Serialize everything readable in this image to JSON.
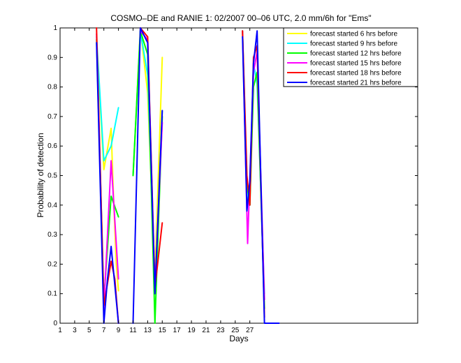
{
  "chart_data": {
    "type": "line",
    "title": "COSMO–DE and RANIE 1: 02/2007 00–06 UTC, 2.0 mm/6h for \"Ems\"",
    "xlabel": "Days",
    "ylabel": "Probability of detection",
    "xlim": [
      1,
      50
    ],
    "ylim": [
      0,
      1
    ],
    "xticks": [
      1,
      3,
      5,
      7,
      9,
      11,
      13,
      15,
      17,
      19,
      21,
      23,
      25,
      27
    ],
    "xtick_labels": [
      "1",
      "3",
      "5",
      "7",
      "9",
      "11",
      "13",
      "15",
      "17",
      "19",
      "21",
      "23",
      "25",
      "27"
    ],
    "yticks": [
      0,
      0.1,
      0.2,
      0.3,
      0.4,
      0.5,
      0.6,
      0.7,
      0.8,
      0.9,
      1
    ],
    "ytick_labels": [
      "0",
      "0.1",
      "0.2",
      "0.3",
      "0.4",
      "0.5",
      "0.6",
      "0.7",
      "0.8",
      "0.9",
      "1"
    ],
    "grid": false,
    "legend_position": "top-right",
    "series": [
      {
        "name": "forecast started 6 hrs before",
        "color": "#ffff00",
        "points": [
          [
            6,
            0.96
          ],
          [
            7,
            0.52
          ],
          [
            8,
            0.66
          ],
          [
            8.3,
            0.44
          ],
          [
            8.7,
            0.2
          ],
          [
            9,
            0.11
          ],
          null,
          [
            11,
            0.5
          ],
          [
            12,
            1
          ],
          [
            13,
            0.78
          ],
          [
            14,
            0.15
          ],
          [
            15,
            0.9
          ]
        ]
      },
      {
        "name": "forecast started 9 hrs before",
        "color": "#00ffff",
        "points": [
          [
            6,
            0.97
          ],
          [
            7,
            0.55
          ],
          [
            8,
            0.6
          ],
          [
            9,
            0.73
          ],
          null,
          [
            11,
            0.5
          ],
          [
            12,
            0.99
          ],
          [
            13,
            0.84
          ],
          [
            14,
            0.1
          ],
          [
            15,
            0.72
          ],
          null,
          [
            26,
            0.99
          ],
          [
            26.6,
            0.42
          ],
          [
            27,
            0.4
          ],
          [
            27.5,
            0.88
          ],
          [
            28,
            0.81
          ],
          [
            29,
            0.1
          ]
        ]
      },
      {
        "name": "forecast started 12 hrs before",
        "color": "#00ff00",
        "points": [
          [
            6,
            0.96
          ],
          [
            7,
            0.08
          ],
          [
            8,
            0.43
          ],
          [
            9,
            0.36
          ],
          null,
          [
            11,
            0.5
          ],
          [
            12,
            0.99
          ],
          [
            13,
            0.91
          ],
          [
            14,
            0
          ],
          [
            15,
            0.7
          ],
          null,
          [
            26,
            0.99
          ],
          [
            26.6,
            0.47
          ],
          [
            27,
            0.4
          ],
          [
            27.5,
            0.8
          ],
          [
            28,
            0.85
          ],
          [
            29,
            0.05
          ]
        ]
      },
      {
        "name": "forecast started 15 hrs before",
        "color": "#ff00ff",
        "points": [
          [
            6,
            0.98
          ],
          [
            7,
            0.05
          ],
          [
            8,
            0.55
          ],
          [
            9,
            0.15
          ],
          null,
          [
            12,
            0.99
          ],
          [
            13,
            0.96
          ],
          [
            14,
            0.12
          ],
          [
            15,
            0.68
          ],
          null,
          [
            26,
            0.99
          ],
          [
            26.7,
            0.27
          ],
          [
            27.5,
            0.85
          ],
          [
            28,
            0.92
          ],
          [
            29,
            0.08
          ]
        ]
      },
      {
        "name": "forecast started 18 hrs before",
        "color": "#ff0000",
        "points": [
          [
            6,
            1
          ],
          [
            7,
            0.06
          ],
          [
            8,
            0.21
          ],
          [
            8.5,
            0.15
          ],
          [
            9,
            0
          ],
          null,
          [
            12,
            1
          ],
          [
            13,
            0.97
          ],
          [
            14,
            0.12
          ],
          [
            15,
            0.34
          ],
          null,
          [
            26,
            0.99
          ],
          [
            26.6,
            0.5
          ],
          [
            27,
            0.4
          ],
          [
            27.5,
            0.9
          ],
          [
            28,
            0.94
          ],
          [
            29,
            0.02
          ]
        ]
      },
      {
        "name": "forecast started 21 hrs before",
        "color": "#0000ff",
        "points": [
          [
            6,
            0.95
          ],
          [
            7,
            0
          ],
          [
            7.5,
            0.15
          ],
          [
            8,
            0.26
          ],
          [
            9,
            0
          ],
          null,
          [
            11,
            0
          ],
          [
            12,
            1
          ],
          [
            13,
            0.95
          ],
          [
            14,
            0.1
          ],
          [
            15,
            0.72
          ],
          null,
          [
            26,
            0.97
          ],
          [
            26.6,
            0.38
          ],
          [
            27,
            0.48
          ],
          [
            27.5,
            0.88
          ],
          [
            28,
            0.99
          ],
          [
            29,
            0
          ],
          [
            31,
            0
          ]
        ]
      }
    ]
  }
}
